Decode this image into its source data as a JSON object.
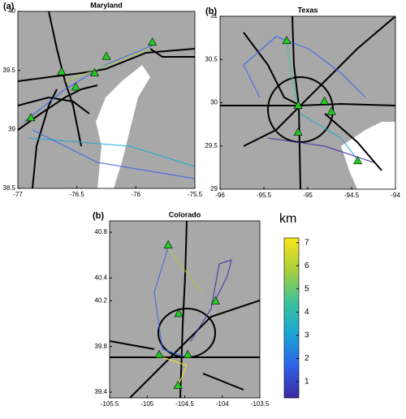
{
  "chart_data": [
    {
      "type": "map",
      "panel": "(a)",
      "title": "Maryland",
      "xlim": [
        -77,
        -75.5
      ],
      "ylim": [
        38.5,
        40
      ],
      "xticks": [
        -77,
        -76.5,
        -76,
        -75.5
      ],
      "yticks": [
        38.5,
        39,
        39.5,
        40
      ],
      "sites": {
        "color": "#22cc22",
        "x": [
          -76.89,
          -76.63,
          -76.51,
          -76.35,
          -76.25,
          -75.86
        ],
        "y": [
          39.1,
          39.49,
          39.36,
          39.48,
          39.62,
          39.74
        ]
      }
    },
    {
      "type": "map",
      "panel": "(b)",
      "title": "Texas",
      "xlim": [
        -96,
        -94
      ],
      "ylim": [
        29,
        31
      ],
      "xticks": [
        -96,
        -95.5,
        -95,
        -94.5,
        -94
      ],
      "yticks": [
        29,
        29.5,
        30,
        30.5,
        31
      ],
      "sites": {
        "color": "#22cc22",
        "x": [
          -95.24,
          -95.11,
          -94.81,
          -94.73,
          -95.11,
          -94.43
        ],
        "y": [
          30.72,
          29.97,
          30.02,
          29.9,
          29.66,
          29.33
        ]
      }
    },
    {
      "type": "map",
      "panel": "(b)",
      "title": "Colorado",
      "xlim": [
        -105.5,
        -103.5
      ],
      "ylim": [
        39.35,
        40.9
      ],
      "xticks": [
        -105.5,
        -105,
        -104.5,
        -104,
        -103.5
      ],
      "yticks": [
        39.4,
        39.8,
        40.2,
        40.4,
        40.8
      ],
      "sites": {
        "color": "#22cc22",
        "x": [
          -104.72,
          -104.58,
          -104.09,
          -104.84,
          -104.46,
          -104.59
        ],
        "y": [
          40.69,
          40.09,
          40.2,
          39.73,
          39.73,
          39.46
        ]
      }
    },
    {
      "type": "colorbar",
      "title": "km",
      "ylim": [
        0.3,
        7.2
      ],
      "yticks": [
        1,
        2,
        3,
        4,
        5,
        6,
        7
      ],
      "colors": [
        "#3b2aa0",
        "#2f62e8",
        "#1aa6d6",
        "#3cc39a",
        "#a9cf3a",
        "#f8e71c"
      ]
    }
  ]
}
